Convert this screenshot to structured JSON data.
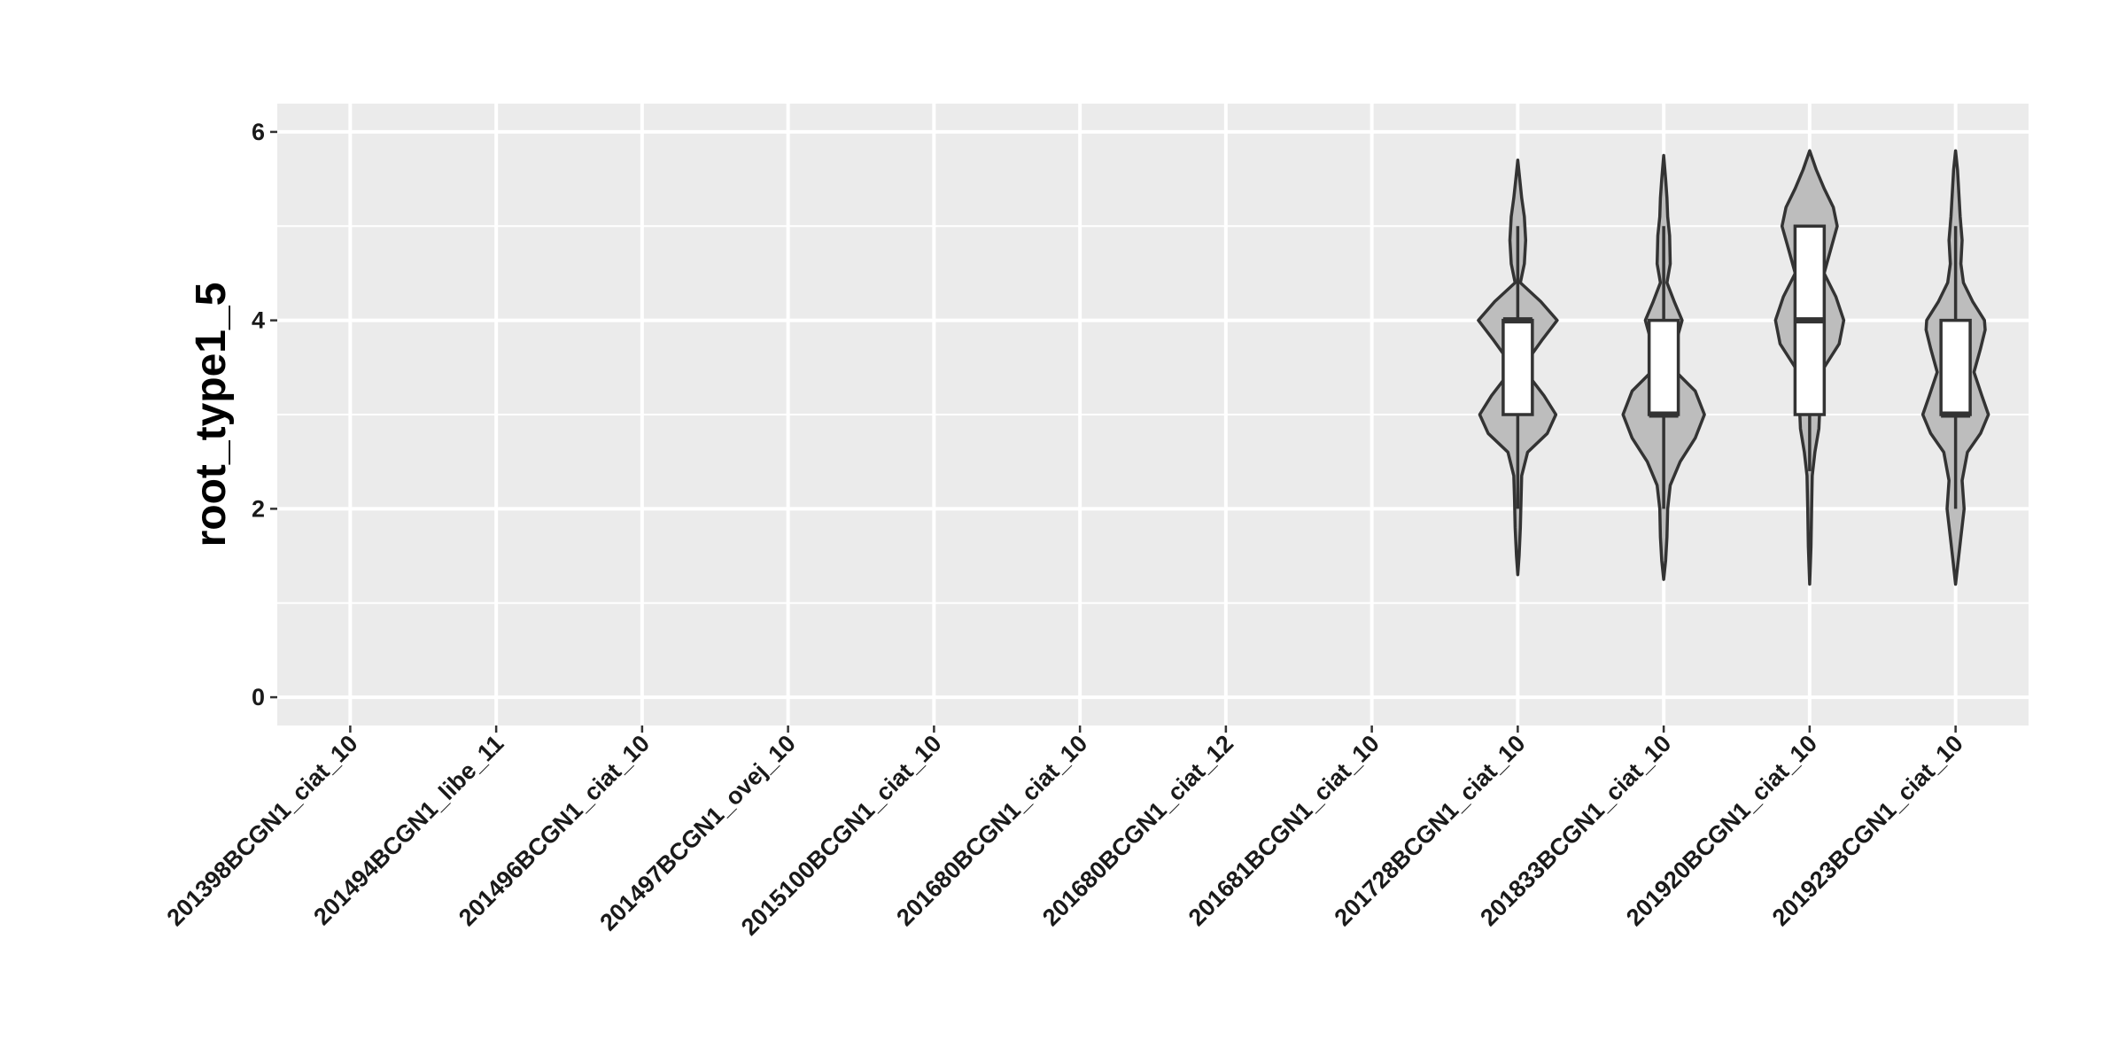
{
  "chart_data": {
    "type": "violin",
    "title": "",
    "xlabel": "",
    "ylabel": "root_type1_5",
    "ylim": [
      -0.3,
      6.3
    ],
    "yticks": [
      0,
      2,
      4,
      6
    ],
    "grid": true,
    "legend": "none",
    "colors": {
      "panel": "#EBEBEB",
      "violin_fill": "#BDBDBD",
      "outline": "#333333",
      "box_fill": "#FFFFFF"
    },
    "categories": [
      "201398BCGN1_ciat_10",
      "201494BCGN1_libe_11",
      "201496BCGN1_ciat_10",
      "201497BCGN1_ovej_10",
      "2015100BCGN1_ciat_10",
      "201680BCGN1_ciat_10",
      "201680BCGN1_ciat_12",
      "201681BCGN1_ciat_10",
      "201728BCGN1_ciat_10",
      "201833BCGN1_ciat_10",
      "201920BCGN1_ciat_10",
      "201923BCGN1_ciat_10"
    ],
    "groups": [
      null,
      null,
      null,
      null,
      null,
      null,
      null,
      null,
      {
        "box": {
          "lower_whisker": 2,
          "q1": 3,
          "median": 4,
          "q3": 4,
          "upper_whisker": 5
        },
        "violin": {
          "y": [
            1.3,
            1.5,
            1.8,
            2.1,
            2.35,
            2.6,
            2.8,
            3.0,
            3.2,
            3.5,
            3.8,
            4.0,
            4.2,
            4.4,
            4.6,
            4.85,
            5.1,
            5.3,
            5.5,
            5.7
          ],
          "halfwidth": [
            0.0,
            0.02,
            0.04,
            0.05,
            0.06,
            0.15,
            0.45,
            0.58,
            0.4,
            0.07,
            0.38,
            0.6,
            0.35,
            0.04,
            0.1,
            0.12,
            0.1,
            0.06,
            0.03,
            0.0
          ]
        }
      },
      {
        "box": {
          "lower_whisker": 2,
          "q1": 3,
          "median": 3,
          "q3": 4,
          "upper_whisker": 5
        },
        "violin": {
          "y": [
            1.25,
            1.45,
            1.7,
            2.0,
            2.25,
            2.5,
            2.75,
            3.0,
            3.25,
            3.5,
            3.75,
            4.0,
            4.2,
            4.4,
            4.6,
            4.9,
            5.1,
            5.3,
            5.5,
            5.75
          ],
          "halfwidth": [
            0.0,
            0.03,
            0.05,
            0.06,
            0.1,
            0.25,
            0.48,
            0.62,
            0.48,
            0.12,
            0.18,
            0.28,
            0.16,
            0.05,
            0.1,
            0.09,
            0.06,
            0.05,
            0.03,
            0.0
          ]
        }
      },
      {
        "box": {
          "lower_whisker": 2.4,
          "q1": 3,
          "median": 4,
          "q3": 5,
          "upper_whisker": 5
        },
        "violin": {
          "y": [
            1.2,
            1.6,
            2.0,
            2.35,
            2.6,
            2.85,
            3.0,
            3.25,
            3.5,
            3.75,
            4.0,
            4.25,
            4.5,
            4.75,
            5.0,
            5.2,
            5.4,
            5.6,
            5.8
          ],
          "halfwidth": [
            0.0,
            0.02,
            0.03,
            0.04,
            0.08,
            0.14,
            0.15,
            0.13,
            0.22,
            0.45,
            0.52,
            0.4,
            0.22,
            0.32,
            0.42,
            0.36,
            0.22,
            0.1,
            0.0
          ]
        }
      },
      {
        "box": {
          "lower_whisker": 2,
          "q1": 3,
          "median": 3,
          "q3": 4,
          "upper_whisker": 5
        },
        "violin": {
          "y": [
            1.2,
            1.45,
            1.7,
            2.0,
            2.3,
            2.6,
            2.8,
            3.0,
            3.2,
            3.45,
            3.7,
            3.9,
            4.0,
            4.2,
            4.4,
            4.6,
            4.85,
            5.1,
            5.35,
            5.6,
            5.8
          ],
          "halfwidth": [
            0.0,
            0.04,
            0.08,
            0.13,
            0.1,
            0.18,
            0.38,
            0.5,
            0.4,
            0.28,
            0.38,
            0.45,
            0.44,
            0.26,
            0.12,
            0.08,
            0.1,
            0.07,
            0.05,
            0.03,
            0.0
          ]
        }
      }
    ]
  }
}
